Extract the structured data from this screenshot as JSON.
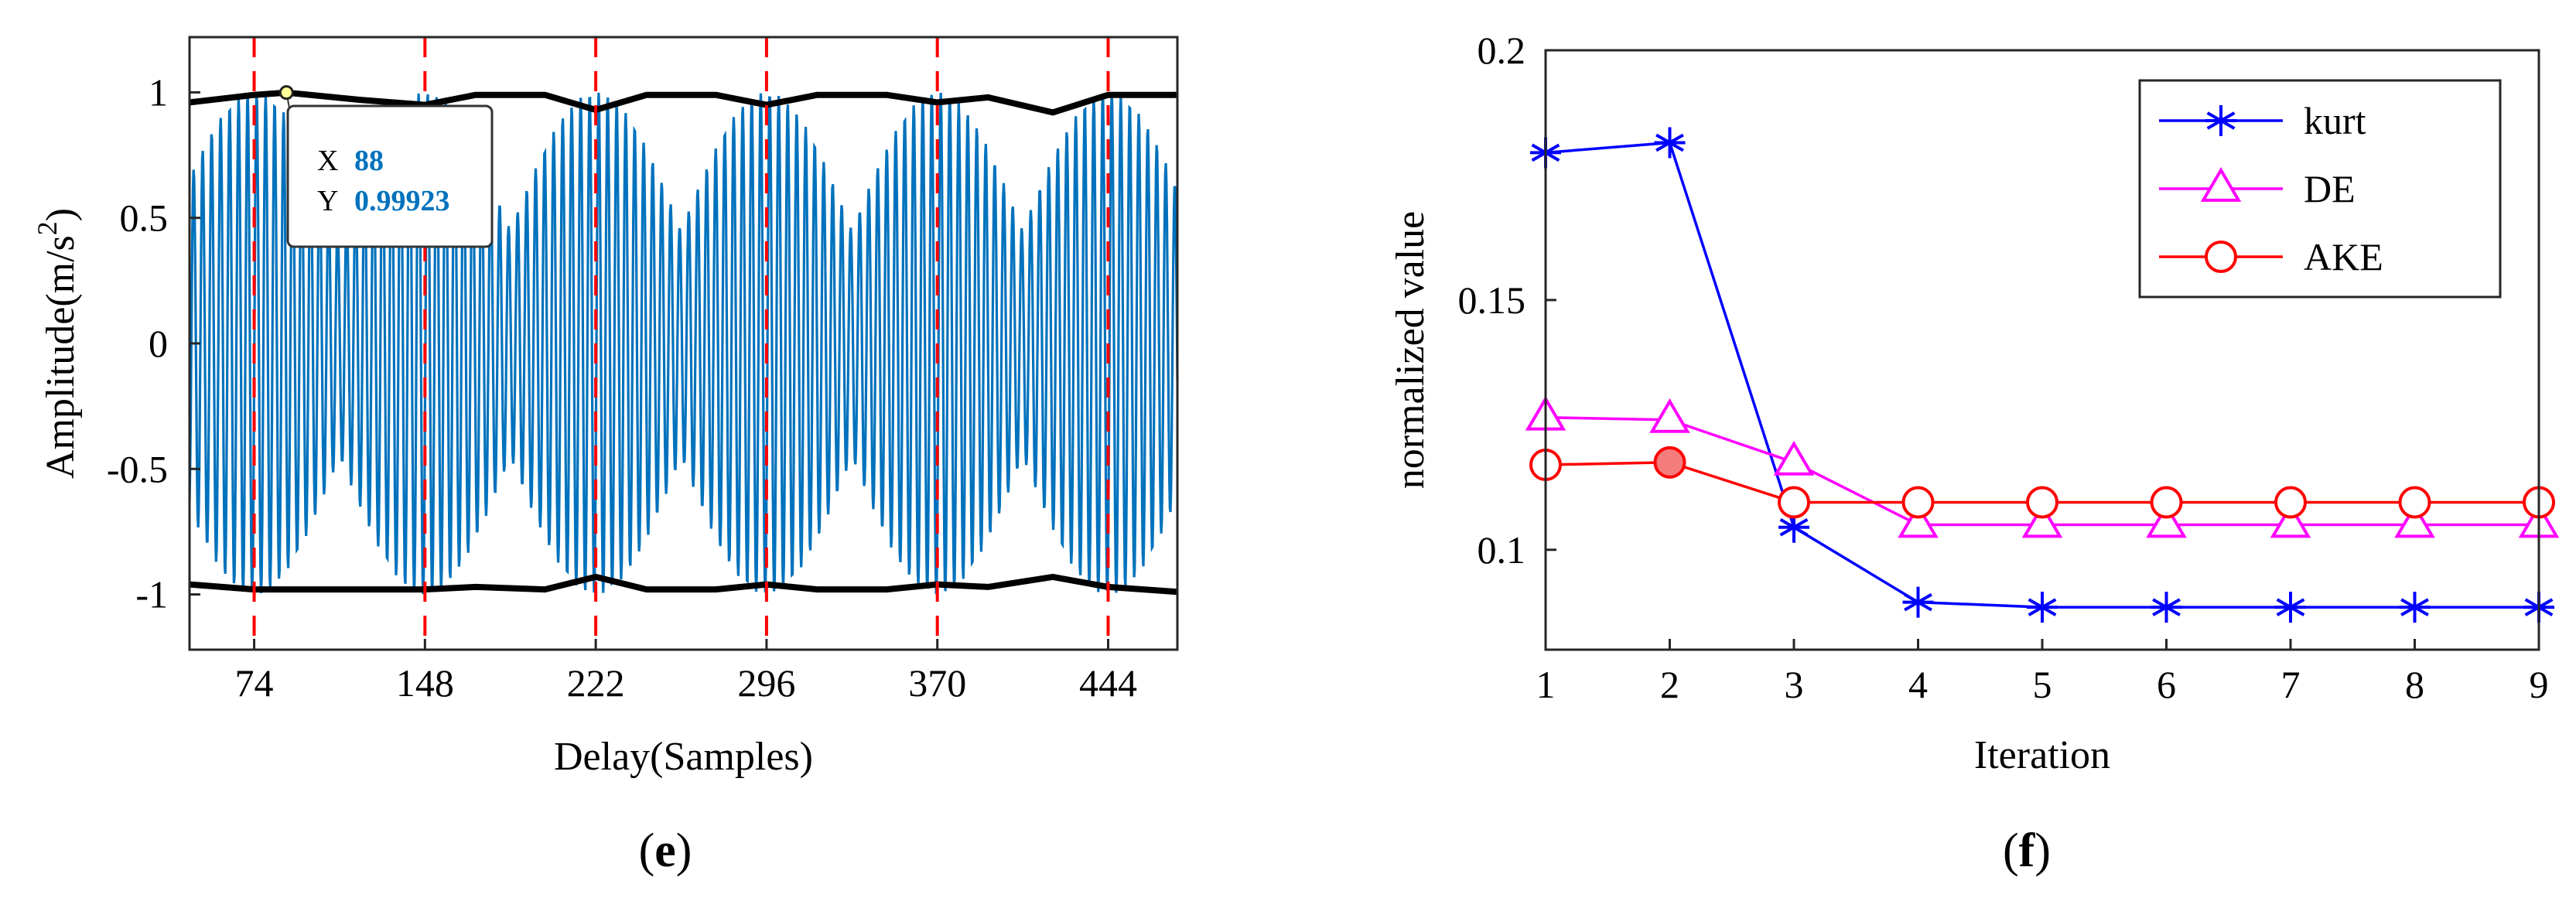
{
  "chart_data": [
    {
      "panel_label": "e",
      "type": "line",
      "xlabel": "Delay(Samples)",
      "ylabel_main": "Amplitude(m/s",
      "ylabel_sup": "2",
      "ylabel_close": ")",
      "xlim": [
        46,
        474
      ],
      "ylim": [
        -1.22,
        1.22
      ],
      "xticks": [
        74,
        148,
        222,
        296,
        370,
        444
      ],
      "xtick_labels": [
        "74",
        "148",
        "222",
        "296",
        "370",
        "444"
      ],
      "yticks": [
        -1,
        -0.5,
        0,
        0.5,
        1
      ],
      "ytick_labels": [
        "-1",
        "-0.5",
        "0",
        "0.5",
        "1"
      ],
      "series": [
        {
          "name": "signal",
          "color": "#0072bd",
          "signal_period": 3.9,
          "modulation_period": 74,
          "peak": 1.0,
          "min_envelope": 0.45
        },
        {
          "name": "upper envelope",
          "color": "#000000",
          "x": [
            46,
            74,
            88,
            120,
            148,
            170,
            200,
            222,
            244,
            274,
            296,
            318,
            348,
            370,
            392,
            420,
            444,
            474
          ],
          "y": [
            0.96,
            0.99,
            0.999,
            0.97,
            0.95,
            0.99,
            0.99,
            0.93,
            0.99,
            0.99,
            0.95,
            0.99,
            0.99,
            0.96,
            0.98,
            0.92,
            0.99,
            0.99
          ]
        },
        {
          "name": "lower envelope",
          "color": "#000000",
          "x": [
            46,
            74,
            100,
            148,
            170,
            200,
            222,
            244,
            274,
            296,
            318,
            348,
            370,
            392,
            420,
            444,
            474
          ],
          "y": [
            -0.96,
            -0.98,
            -0.98,
            -0.98,
            -0.97,
            -0.98,
            -0.93,
            -0.98,
            -0.98,
            -0.96,
            -0.98,
            -0.98,
            -0.96,
            -0.97,
            -0.93,
            -0.97,
            -0.99
          ]
        }
      ],
      "vlines": {
        "color": "#ff0000",
        "style": "dashed",
        "x": [
          74,
          148,
          222,
          296,
          370,
          444
        ]
      },
      "datatip": {
        "x_label": "X",
        "x_value": "88",
        "y_label": "Y",
        "y_value": "0.99923",
        "point": [
          88,
          0.99923
        ]
      }
    },
    {
      "panel_label": "f",
      "type": "line",
      "xlabel": "Iteration",
      "ylabel": "normalized value",
      "xlim": [
        1,
        9
      ],
      "ylim": [
        0.08,
        0.2
      ],
      "xticks": [
        1,
        2,
        3,
        4,
        5,
        6,
        7,
        8,
        9
      ],
      "xtick_labels": [
        "1",
        "2",
        "3",
        "4",
        "5",
        "6",
        "7",
        "8",
        "9"
      ],
      "yticks": [
        0.1,
        0.15,
        0.2
      ],
      "ytick_labels": [
        "0.1",
        "0.15",
        "0.2"
      ],
      "legend": "top-right",
      "x": [
        1,
        2,
        3,
        4,
        5,
        6,
        7,
        8,
        9
      ],
      "series": [
        {
          "name": "kurt",
          "color": "#0000ff",
          "marker": "asterisk",
          "values": [
            0.1795,
            0.1815,
            0.1045,
            0.0895,
            0.0885,
            0.0885,
            0.0885,
            0.0885,
            0.0885
          ]
        },
        {
          "name": "DE",
          "color": "#ff00ff",
          "marker": "triangle",
          "values": [
            0.1265,
            0.126,
            0.1175,
            0.105,
            0.105,
            0.105,
            0.105,
            0.105,
            0.105
          ]
        },
        {
          "name": "AKE",
          "color": "#ff0000",
          "marker": "circle",
          "values": [
            0.117,
            0.1175,
            0.1095,
            0.1095,
            0.1095,
            0.1095,
            0.1095,
            0.1095,
            0.1095
          ],
          "highlight_index": 1
        }
      ]
    }
  ]
}
